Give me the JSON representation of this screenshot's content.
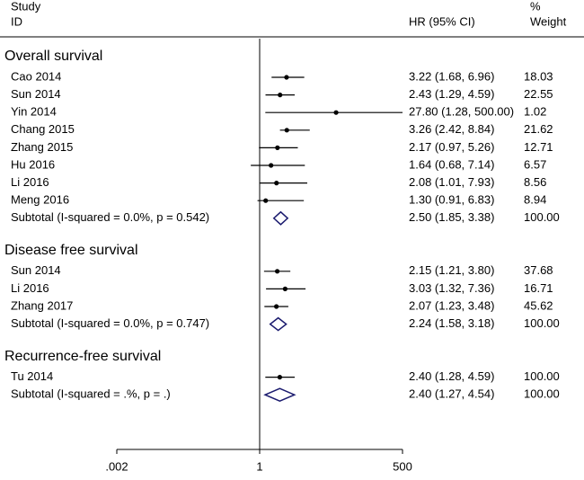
{
  "chart_data": {
    "type": "forest",
    "study_header": "Study",
    "id_header": "ID",
    "ci_header": "HR (95% CI)",
    "pct_header": "%",
    "weight_header": "Weight",
    "log_scale": true,
    "xlim": [
      0.002,
      500
    ],
    "xticks": [
      {
        "value": 0.002,
        "label": ".002"
      },
      1,
      500
    ],
    "point_color": "#000000",
    "diamond_color": "#1a1a6e",
    "groups": [
      {
        "name": "Overall survival",
        "rows": [
          {
            "study": "Cao  2014",
            "hr": 3.22,
            "lo": 1.68,
            "hi": 6.96,
            "ci_label": "3.22 (1.68, 6.96)",
            "weight": 18.03
          },
          {
            "study": "Sun 2014",
            "hr": 2.43,
            "lo": 1.29,
            "hi": 4.59,
            "ci_label": "2.43 (1.29, 4.59)",
            "weight": 22.55
          },
          {
            "study": "Yin 2014",
            "hr": 27.8,
            "lo": 1.28,
            "hi": 500,
            "ci_label": "27.80 (1.28, 500.00)",
            "weight": 1.02
          },
          {
            "study": "Chang 2015",
            "hr": 3.26,
            "lo": 2.42,
            "hi": 8.84,
            "ci_label": "3.26 (2.42, 8.84)",
            "weight": 21.62
          },
          {
            "study": "Zhang 2015",
            "hr": 2.17,
            "lo": 0.97,
            "hi": 5.26,
            "ci_label": "2.17 (0.97, 5.26)",
            "weight": 12.71
          },
          {
            "study": "Hu 2016",
            "hr": 1.64,
            "lo": 0.68,
            "hi": 7.14,
            "ci_label": "1.64 (0.68, 7.14)",
            "weight": 6.57
          },
          {
            "study": "Li 2016",
            "hr": 2.08,
            "lo": 1.01,
            "hi": 7.93,
            "ci_label": "2.08 (1.01, 7.93)",
            "weight": 8.56
          },
          {
            "study": "Meng 2016",
            "hr": 1.3,
            "lo": 0.91,
            "hi": 6.83,
            "ci_label": "1.30 (0.91, 6.83)",
            "weight": 8.94
          }
        ],
        "subtotal": {
          "study": "Subtotal  (I-squared = 0.0%, p = 0.542)",
          "hr": 2.5,
          "lo": 1.85,
          "hi": 3.38,
          "ci_label": "2.50 (1.85, 3.38)",
          "weight": 100,
          "weight_label": "100.00"
        }
      },
      {
        "name": "Disease free survival",
        "rows": [
          {
            "study": "Sun 2014",
            "hr": 2.15,
            "lo": 1.21,
            "hi": 3.8,
            "ci_label": "2.15 (1.21, 3.80)",
            "weight": 37.68
          },
          {
            "study": "Li 2016",
            "hr": 3.03,
            "lo": 1.32,
            "hi": 7.36,
            "ci_label": "3.03 (1.32, 7.36)",
            "weight": 16.71
          },
          {
            "study": "Zhang 2017",
            "hr": 2.07,
            "lo": 1.23,
            "hi": 3.48,
            "ci_label": "2.07 (1.23, 3.48)",
            "weight": 45.62
          }
        ],
        "subtotal": {
          "study": "Subtotal  (I-squared = 0.0%, p = 0.747)",
          "hr": 2.24,
          "lo": 1.58,
          "hi": 3.18,
          "ci_label": "2.24 (1.58, 3.18)",
          "weight": 100,
          "weight_label": "100.00"
        }
      },
      {
        "name": "Recurrence-free survival",
        "rows": [
          {
            "study": "Tu 2014",
            "hr": 2.4,
            "lo": 1.28,
            "hi": 4.59,
            "ci_label": "2.40 (1.28, 4.59)",
            "weight": 100,
            "weight_label": "100.00"
          }
        ],
        "subtotal": {
          "study": "Subtotal  (I-squared = .%, p = .)",
          "hr": 2.4,
          "lo": 1.27,
          "hi": 4.54,
          "ci_label": "2.40 (1.27, 4.54)",
          "weight": 100,
          "weight_label": "100.00"
        }
      }
    ]
  }
}
